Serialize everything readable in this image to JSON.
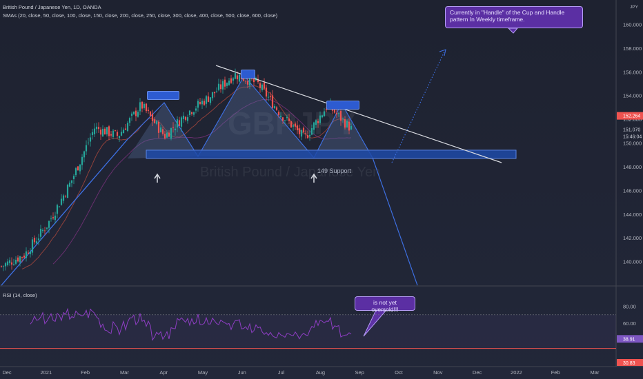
{
  "header": {
    "symbol_line": "British Pound / Japanese Yen, 1D, OANDA",
    "indicator_line": "SMAs (20, close, 50, close, 100, close, 150, close, 200, close, 250, close, 300, close, 400, close, 500, close, 600, close)"
  },
  "currency": "JPY",
  "annotations": {
    "handle_note": "Currently in \"Handle\" of the Cup and Handle pattern In Weekly timeframe.",
    "support_label": "149 Support",
    "rsi_note": "is not yet oversold!!!"
  },
  "watermark": {
    "ticker": "GBPJPY",
    "name": "British Pound / Japanese Yen"
  },
  "rsi_panel": {
    "label": "RSI (14, close)",
    "current": "38.91",
    "lower_value": "30.83"
  },
  "colors": {
    "up": "#26a69a",
    "down": "#ef5350",
    "pattern": "#3d6fe0",
    "support_zone": "#1e4aa8",
    "rsi_line": "#8e3ec4",
    "trendline": "#d8dae0",
    "callout": "#5b2fa3"
  },
  "chart_data": {
    "type": "candlestick",
    "price_axis": {
      "ticks": [
        "160.000",
        "158.000",
        "156.000",
        "154.000",
        "152.000",
        "150.000",
        "148.000",
        "146.000",
        "144.000",
        "142.000",
        "140.000"
      ],
      "min": 138.0,
      "max": 161.6,
      "last_price": "152.264",
      "countdown": "15:46:04",
      "other_label": "151.070"
    },
    "time_axis": {
      "ticks": [
        "Dec",
        "2021",
        "Feb",
        "Mar",
        "Apr",
        "May",
        "Jun",
        "Jul",
        "Aug",
        "Sep",
        "Oct",
        "Nov",
        "Dec",
        "2022",
        "Feb",
        "Mar"
      ]
    },
    "close_path": [
      {
        "t": "Dec",
        "v": 139.6
      },
      {
        "t": "2021",
        "v": 140.6
      },
      {
        "t": "Feb",
        "v": 143.2
      },
      {
        "t": "Feb-mid",
        "v": 146.8
      },
      {
        "t": "Mar",
        "v": 151.3
      },
      {
        "t": "Mar-mid",
        "v": 150.6
      },
      {
        "t": "Apr",
        "v": 153.2
      },
      {
        "t": "Apr-mid",
        "v": 150.6
      },
      {
        "t": "May",
        "v": 152.6
      },
      {
        "t": "May-mid",
        "v": 154.0
      },
      {
        "t": "Jun",
        "v": 155.8
      },
      {
        "t": "Jun-mid",
        "v": 155.0
      },
      {
        "t": "Jul",
        "v": 152.4
      },
      {
        "t": "Jul-mid",
        "v": 150.4
      },
      {
        "t": "Aug",
        "v": 153.2
      },
      {
        "t": "Aug-mid",
        "v": 151.2
      }
    ],
    "rsi_axis": {
      "ticks": [
        "80.00",
        "60.00"
      ],
      "levels": [
        70,
        30
      ]
    },
    "levels": {
      "support": 149
    }
  }
}
